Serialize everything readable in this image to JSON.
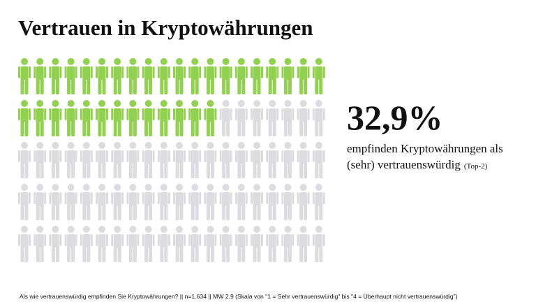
{
  "chart_data": {
    "type": "pictogram",
    "title": "Vertrauen in Kryptowährungen",
    "values": [
      32.9
    ],
    "value_labels": [
      "32,9%"
    ],
    "color": "#92d050",
    "rest_color": "#dcdce0",
    "caption": "empfinden Kryptowährungen als",
    "caption_line2": "(sehr) vertrauenswürdig",
    "caption_note": "(Top-2)",
    "footnote": "Als wie vertrauenswürdig empfinden Sie Kryptowährungen? || n=1.634 || MW 2.9 (Skala von \"1 = Sehr vertrauenswürdig\" bis \"4 = Überhaupt nicht vertrauenswürdig\")"
  }
}
